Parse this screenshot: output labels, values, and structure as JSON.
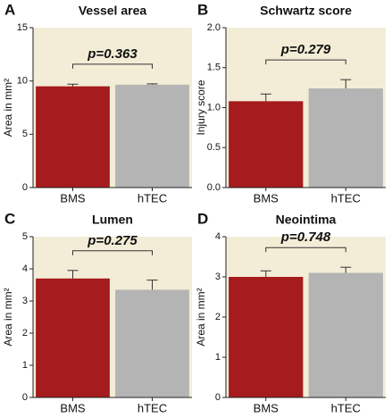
{
  "chart_data": [
    {
      "type": "bar",
      "panel": "A",
      "title": "Vessel area",
      "annotation": "p=0.363",
      "ylabel": "Area in mm²",
      "categories": [
        "BMS",
        "hTEC"
      ],
      "values": [
        9.5,
        9.65
      ],
      "errors": [
        0.2,
        0.08
      ],
      "colors": [
        "#a61b1d",
        "#b4b4b4"
      ],
      "ylim": [
        0,
        15
      ],
      "yticks": [
        0,
        5,
        10,
        15
      ]
    },
    {
      "type": "bar",
      "panel": "B",
      "title": "Schwartz score",
      "annotation": "p=0.279",
      "ylabel": "Injury score",
      "categories": [
        "BMS",
        "hTEC"
      ],
      "values": [
        1.08,
        1.24
      ],
      "errors": [
        0.09,
        0.11
      ],
      "colors": [
        "#a61b1d",
        "#b4b4b4"
      ],
      "ylim": [
        0,
        2
      ],
      "yticks": [
        {
          "value": 0,
          "label": "0.0"
        },
        {
          "value": 0.5,
          "label": "0.5"
        },
        {
          "value": 1,
          "label": "1.0"
        },
        {
          "value": 1.5,
          "label": "1.5"
        },
        {
          "value": 2,
          "label": "2.0"
        }
      ]
    },
    {
      "type": "bar",
      "panel": "C",
      "title": "Lumen",
      "annotation": "p=0.275",
      "ylabel": "Area in mm²",
      "categories": [
        "BMS",
        "hTEC"
      ],
      "values": [
        3.7,
        3.35
      ],
      "errors": [
        0.25,
        0.3
      ],
      "colors": [
        "#a61b1d",
        "#b4b4b4"
      ],
      "ylim": [
        0,
        5
      ],
      "yticks": [
        0,
        1,
        2,
        3,
        4,
        5
      ]
    },
    {
      "type": "bar",
      "panel": "D",
      "title": "Neointima",
      "annotation": "p=0.748",
      "ylabel": "Area in mm²",
      "categories": [
        "BMS",
        "hTEC"
      ],
      "values": [
        3.0,
        3.1
      ],
      "errors": [
        0.15,
        0.14
      ],
      "colors": [
        "#a61b1d",
        "#b4b4b4"
      ],
      "ylim": [
        0,
        4
      ],
      "yticks": [
        0,
        1,
        2,
        3,
        4
      ]
    }
  ]
}
